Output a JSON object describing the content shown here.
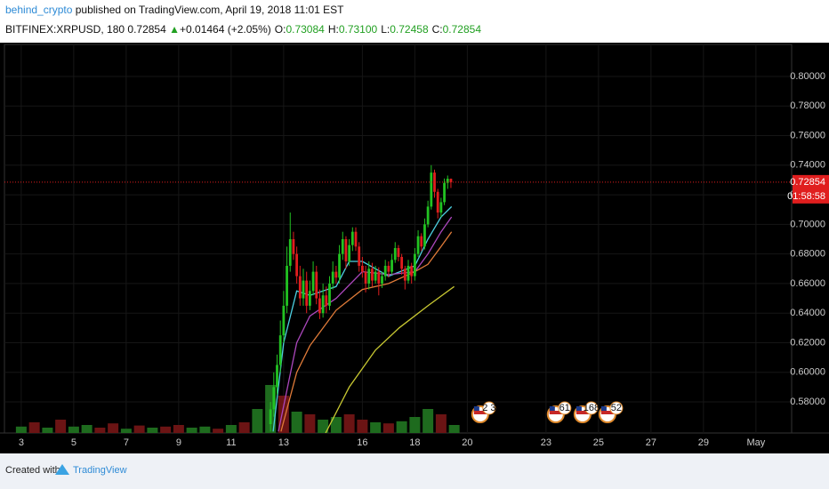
{
  "header": {
    "author": "behind_crypto",
    "published": "published on TradingView.com, April 19, 2018 11:01 EST",
    "symbol": "BITFINEX:XRPUSD, 180",
    "arrow": "▲",
    "change": "+0.01464 (+2.05%)",
    "ohlc": [
      {
        "label": "O:",
        "value": "0.73084"
      },
      {
        "label": "H:",
        "value": "0.73100"
      },
      {
        "label": "L:",
        "value": "0.72458"
      },
      {
        "label": "C:",
        "value": "0.72854"
      }
    ]
  },
  "footer": {
    "created": "Created with",
    "brand": "TradingView"
  },
  "chart_data": {
    "type": "candlestick",
    "countdown": "01:58:58",
    "up_color": "#22c322",
    "down_color": "#e01e1e",
    "price_line_color": "#e01e1e",
    "grid": true,
    "xlim": [
      2.36,
      32.36
    ],
    "ylim": [
      0.559,
      0.8216
    ],
    "xticks": [
      3,
      5,
      7,
      9,
      11,
      13,
      16,
      18,
      20,
      23,
      25,
      27,
      29,
      {
        "value": 31,
        "label": "May"
      }
    ],
    "yticks": [
      {
        "value": 0.58,
        "label": "0.58000"
      },
      {
        "value": 0.6,
        "label": "0.60000"
      },
      {
        "value": 0.62,
        "label": "0.62000"
      },
      {
        "value": 0.64,
        "label": "0.64000"
      },
      {
        "value": 0.66,
        "label": "0.66000"
      },
      {
        "value": 0.68,
        "label": "0.68000"
      },
      {
        "value": 0.7,
        "label": "0.70000"
      },
      {
        "value": 0.72,
        "label": "0.72000"
      },
      {
        "value": 0.74,
        "label": "0.74000"
      },
      {
        "value": 0.76,
        "label": "0.76000"
      },
      {
        "value": 0.78,
        "label": "0.78000"
      },
      {
        "value": 0.8,
        "label": "0.80000"
      }
    ],
    "candles": {
      "x": [
        12.5,
        12.625,
        12.75,
        12.875,
        13,
        13.125,
        13.25,
        13.375,
        13.5,
        13.625,
        13.75,
        13.875,
        14,
        14.125,
        14.25,
        14.375,
        14.5,
        14.625,
        14.75,
        14.875,
        15,
        15.125,
        15.25,
        15.375,
        15.5,
        15.625,
        15.75,
        15.875,
        16,
        16.125,
        16.25,
        16.375,
        16.5,
        16.625,
        16.75,
        16.875,
        17,
        17.125,
        17.25,
        17.375,
        17.5,
        17.625,
        17.75,
        17.875,
        18,
        18.125,
        18.25,
        18.375,
        18.5,
        18.625,
        18.75,
        18.875,
        19,
        19.125,
        19.25,
        19.375
      ],
      "open": [
        0.565,
        0.575,
        0.59,
        0.605,
        0.625,
        0.645,
        0.672,
        0.69,
        0.68,
        0.665,
        0.65,
        0.662,
        0.645,
        0.655,
        0.668,
        0.65,
        0.64,
        0.652,
        0.645,
        0.66,
        0.668,
        0.664,
        0.68,
        0.69,
        0.675,
        0.686,
        0.695,
        0.685,
        0.672,
        0.668,
        0.66,
        0.67,
        0.662,
        0.668,
        0.66,
        0.665,
        0.672,
        0.668,
        0.676,
        0.684,
        0.678,
        0.67,
        0.662,
        0.672,
        0.665,
        0.68,
        0.692,
        0.685,
        0.7,
        0.712,
        0.735,
        0.722,
        0.708,
        0.715,
        0.728,
        0.73084
      ],
      "high": [
        0.58,
        0.6,
        0.612,
        0.635,
        0.655,
        0.685,
        0.708,
        0.695,
        0.685,
        0.672,
        0.67,
        0.668,
        0.662,
        0.675,
        0.672,
        0.656,
        0.66,
        0.658,
        0.665,
        0.675,
        0.672,
        0.686,
        0.695,
        0.692,
        0.69,
        0.698,
        0.698,
        0.688,
        0.678,
        0.672,
        0.675,
        0.674,
        0.672,
        0.671,
        0.668,
        0.676,
        0.675,
        0.68,
        0.688,
        0.686,
        0.68,
        0.672,
        0.676,
        0.674,
        0.684,
        0.696,
        0.694,
        0.704,
        0.716,
        0.74,
        0.737,
        0.724,
        0.718,
        0.731,
        0.733,
        0.731
      ],
      "low": [
        0.56,
        0.57,
        0.585,
        0.6,
        0.62,
        0.64,
        0.668,
        0.676,
        0.66,
        0.645,
        0.645,
        0.64,
        0.642,
        0.652,
        0.646,
        0.636,
        0.637,
        0.64,
        0.642,
        0.656,
        0.66,
        0.66,
        0.676,
        0.67,
        0.672,
        0.682,
        0.682,
        0.668,
        0.664,
        0.654,
        0.656,
        0.658,
        0.66,
        0.652,
        0.657,
        0.662,
        0.664,
        0.666,
        0.674,
        0.675,
        0.666,
        0.656,
        0.66,
        0.66,
        0.662,
        0.678,
        0.682,
        0.683,
        0.698,
        0.71,
        0.718,
        0.704,
        0.705,
        0.713,
        0.724,
        0.72458
      ],
      "close": [
        0.575,
        0.59,
        0.605,
        0.625,
        0.645,
        0.672,
        0.69,
        0.68,
        0.665,
        0.65,
        0.662,
        0.645,
        0.655,
        0.668,
        0.65,
        0.64,
        0.652,
        0.645,
        0.66,
        0.668,
        0.664,
        0.68,
        0.69,
        0.675,
        0.686,
        0.695,
        0.685,
        0.672,
        0.668,
        0.66,
        0.67,
        0.662,
        0.668,
        0.66,
        0.665,
        0.672,
        0.668,
        0.676,
        0.684,
        0.678,
        0.67,
        0.662,
        0.672,
        0.665,
        0.68,
        0.692,
        0.685,
        0.7,
        0.712,
        0.735,
        0.722,
        0.708,
        0.715,
        0.728,
        0.73084,
        0.72854
      ]
    },
    "moving_averages": [
      {
        "color": "#4dd0e1",
        "x": [
          12.6,
          13,
          13.5,
          14,
          15,
          15.5,
          16,
          17,
          18,
          18.5,
          19,
          19.4
        ],
        "values": [
          0.56,
          0.62,
          0.655,
          0.652,
          0.658,
          0.675,
          0.675,
          0.665,
          0.672,
          0.69,
          0.705,
          0.712
        ]
      },
      {
        "color": "#ab47bc",
        "x": [
          12.8,
          13.5,
          14,
          15,
          16,
          17,
          18,
          18.5,
          19,
          19.4
        ],
        "values": [
          0.56,
          0.62,
          0.638,
          0.65,
          0.668,
          0.666,
          0.668,
          0.68,
          0.695,
          0.705
        ]
      },
      {
        "color": "#e07b39",
        "x": [
          12.9,
          13.5,
          14,
          15,
          16,
          17,
          18,
          18.5,
          19,
          19.4
        ],
        "values": [
          0.56,
          0.6,
          0.618,
          0.642,
          0.656,
          0.66,
          0.668,
          0.673,
          0.685,
          0.695
        ]
      },
      {
        "color": "#c8c832",
        "x": [
          14.6,
          15.5,
          16.5,
          17.4,
          18.5,
          19.5
        ],
        "values": [
          0.559,
          0.59,
          0.615,
          0.63,
          0.645,
          0.658
        ]
      }
    ],
    "volume": {
      "ylim": [
        0,
        100
      ],
      "up_color": "#1e6b1e",
      "down_color": "#6b1414",
      "x": [
        3,
        3.5,
        4,
        4.5,
        5,
        5.5,
        6,
        6.5,
        7,
        7.5,
        8,
        8.5,
        9,
        9.5,
        10,
        10.5,
        11,
        11.5,
        12,
        12.5,
        13,
        13.5,
        14,
        14.5,
        15,
        15.5,
        16,
        16.5,
        17,
        17.5,
        18,
        18.5,
        19,
        19.5
      ],
      "values": [
        12,
        20,
        10,
        25,
        12,
        15,
        10,
        18,
        8,
        14,
        10,
        12,
        15,
        10,
        12,
        8,
        15,
        20,
        45,
        90,
        70,
        40,
        35,
        25,
        30,
        35,
        25,
        20,
        18,
        22,
        30,
        45,
        35,
        15
      ],
      "up": [
        true,
        false,
        true,
        false,
        true,
        true,
        false,
        false,
        true,
        false,
        true,
        false,
        false,
        true,
        true,
        false,
        true,
        false,
        true,
        true,
        false,
        true,
        false,
        true,
        true,
        false,
        false,
        true,
        false,
        true,
        true,
        true,
        false,
        true
      ]
    },
    "events": [
      {
        "x": 20.66,
        "label": "2 3"
      },
      {
        "x": 23.54,
        "label": "61"
      },
      {
        "x": 24.56,
        "label": "168"
      },
      {
        "x": 25.51,
        "label": "52"
      }
    ]
  }
}
